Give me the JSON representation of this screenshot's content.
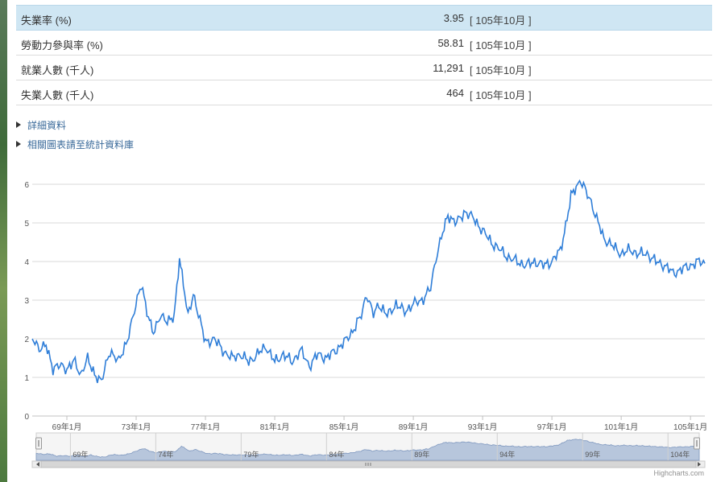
{
  "stats": [
    {
      "label": "失業率 (%)",
      "value": "3.95",
      "period": "[ 105年10月 ]",
      "highlight": true
    },
    {
      "label": "勞動力參與率 (%)",
      "value": "58.81",
      "period": "[ 105年10月 ]",
      "highlight": false
    },
    {
      "label": "就業人數 (千人)",
      "value": "11,291",
      "period": "[ 105年10月 ]",
      "highlight": false
    },
    {
      "label": "失業人數 (千人)",
      "value": "464",
      "period": "[ 105年10月 ]",
      "highlight": false
    }
  ],
  "links": [
    "詳細資料",
    "相關圖表請至統計資料庫"
  ],
  "chart_data": {
    "type": "line",
    "ylim": [
      0,
      6.5
    ],
    "yticks": [
      "0",
      "1",
      "2",
      "3",
      "4",
      "5",
      "6"
    ],
    "xticks": [
      "69年1月",
      "73年1月",
      "77年1月",
      "81年1月",
      "85年1月",
      "89年1月",
      "93年1月",
      "97年1月",
      "101年1月",
      "105年1月"
    ],
    "x_start": "67年1月",
    "x_end": "105年10月",
    "series": [
      {
        "color": "#2f7ed8",
        "anchors": [
          [
            67.0,
            2.0
          ],
          [
            67.4,
            1.7
          ],
          [
            67.8,
            1.9
          ],
          [
            68.2,
            1.2
          ],
          [
            68.6,
            1.3
          ],
          [
            69.0,
            1.2
          ],
          [
            69.4,
            1.5
          ],
          [
            69.8,
            1.0
          ],
          [
            70.2,
            1.5
          ],
          [
            70.6,
            1.1
          ],
          [
            71.0,
            0.9
          ],
          [
            71.5,
            1.7
          ],
          [
            72.0,
            1.4
          ],
          [
            72.5,
            2.0
          ],
          [
            72.9,
            2.7
          ],
          [
            73.3,
            3.4
          ],
          [
            73.7,
            2.6
          ],
          [
            74.0,
            2.2
          ],
          [
            74.4,
            2.6
          ],
          [
            74.8,
            2.4
          ],
          [
            75.2,
            2.6
          ],
          [
            75.5,
            4.1
          ],
          [
            75.8,
            3.2
          ],
          [
            76.0,
            2.6
          ],
          [
            76.3,
            3.1
          ],
          [
            76.6,
            2.6
          ],
          [
            77.0,
            1.9
          ],
          [
            77.5,
            2.0
          ],
          [
            78.0,
            1.7
          ],
          [
            78.5,
            1.5
          ],
          [
            79.0,
            1.6
          ],
          [
            79.5,
            1.4
          ],
          [
            80.0,
            1.6
          ],
          [
            80.5,
            1.8
          ],
          [
            81.0,
            1.4
          ],
          [
            81.5,
            1.6
          ],
          [
            82.0,
            1.4
          ],
          [
            82.5,
            1.7
          ],
          [
            83.0,
            1.3
          ],
          [
            83.5,
            1.6
          ],
          [
            84.0,
            1.5
          ],
          [
            84.5,
            1.7
          ],
          [
            85.0,
            1.9
          ],
          [
            85.5,
            2.2
          ],
          [
            86.0,
            2.6
          ],
          [
            86.3,
            3.1
          ],
          [
            86.7,
            2.7
          ],
          [
            87.0,
            2.9
          ],
          [
            87.5,
            2.6
          ],
          [
            88.0,
            2.9
          ],
          [
            88.5,
            2.7
          ],
          [
            89.0,
            2.9
          ],
          [
            89.5,
            3.0
          ],
          [
            90.0,
            3.3
          ],
          [
            90.3,
            4.0
          ],
          [
            90.7,
            4.8
          ],
          [
            91.0,
            5.2
          ],
          [
            91.5,
            5.0
          ],
          [
            92.0,
            5.3
          ],
          [
            92.5,
            5.1
          ],
          [
            93.0,
            4.8
          ],
          [
            93.5,
            4.5
          ],
          [
            94.0,
            4.3
          ],
          [
            94.5,
            4.1
          ],
          [
            95.0,
            4.0
          ],
          [
            95.5,
            3.9
          ],
          [
            96.0,
            4.0
          ],
          [
            96.5,
            3.9
          ],
          [
            97.0,
            4.0
          ],
          [
            97.5,
            4.3
          ],
          [
            97.8,
            4.9
          ],
          [
            98.1,
            5.7
          ],
          [
            98.4,
            5.9
          ],
          [
            98.6,
            6.1
          ],
          [
            98.9,
            5.9
          ],
          [
            99.2,
            5.6
          ],
          [
            99.5,
            5.2
          ],
          [
            100.0,
            4.6
          ],
          [
            100.5,
            4.4
          ],
          [
            101.0,
            4.2
          ],
          [
            101.5,
            4.3
          ],
          [
            102.0,
            4.2
          ],
          [
            102.5,
            4.2
          ],
          [
            103.0,
            4.0
          ],
          [
            103.5,
            3.9
          ],
          [
            104.0,
            3.7
          ],
          [
            104.5,
            3.8
          ],
          [
            105.0,
            3.9
          ],
          [
            105.5,
            4.0
          ],
          [
            105.83,
            3.95
          ]
        ]
      }
    ],
    "navigator": {
      "labels": [
        "69年",
        "74年",
        "79年",
        "84年",
        "89年",
        "94年",
        "99年",
        "104年"
      ]
    }
  },
  "credit": "Highcharts.com"
}
